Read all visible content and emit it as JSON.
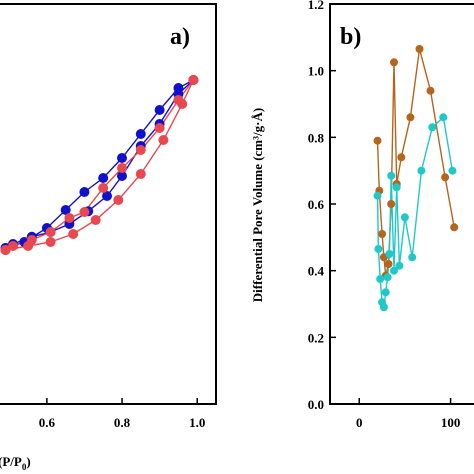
{
  "chart_data": [
    {
      "panel": "a)",
      "type": "line",
      "xlabel_visible_fragment": "(P/P",
      "xlabel_subscript": "0",
      "xlabel_close": ")",
      "xlim": [
        0.47,
        1.05
      ],
      "ylim": [
        0,
        1
      ],
      "x_ticks": [
        0.6,
        0.8,
        1.0
      ],
      "x_tick_labels": [
        "0.6",
        "0.8",
        "1.0"
      ],
      "grid": false,
      "series": [
        {
          "color": "#1111cc",
          "x": [
            0.49,
            0.54,
            0.6,
            0.65,
            0.7,
            0.75,
            0.8,
            0.85,
            0.9,
            0.95,
            0.99
          ],
          "y": [
            0.39,
            0.405,
            0.44,
            0.485,
            0.53,
            0.565,
            0.615,
            0.675,
            0.735,
            0.79,
            0.81
          ]
        },
        {
          "color": "#1111cc",
          "x": [
            0.99,
            0.95,
            0.9,
            0.85,
            0.8,
            0.76,
            0.71,
            0.66,
            0.61,
            0.56,
            0.51,
            0.49
          ],
          "y": [
            0.81,
            0.775,
            0.7,
            0.645,
            0.57,
            0.52,
            0.482,
            0.45,
            0.43,
            0.418,
            0.4,
            0.39
          ]
        },
        {
          "color": "#e84850",
          "x": [
            0.49,
            0.55,
            0.61,
            0.67,
            0.73,
            0.79,
            0.85,
            0.91,
            0.96,
            0.99
          ],
          "y": [
            0.385,
            0.395,
            0.405,
            0.425,
            0.46,
            0.51,
            0.575,
            0.66,
            0.75,
            0.81
          ]
        },
        {
          "color": "#e84850",
          "x": [
            0.99,
            0.95,
            0.9,
            0.85,
            0.8,
            0.75,
            0.7,
            0.66,
            0.61,
            0.56,
            0.51,
            0.49
          ],
          "y": [
            0.81,
            0.76,
            0.69,
            0.635,
            0.59,
            0.54,
            0.48,
            0.465,
            0.43,
            0.41,
            0.395,
            0.385
          ]
        }
      ]
    },
    {
      "panel": "b)",
      "type": "line",
      "ylabel": "Differential Pore Volume (cm³/g·Å)",
      "xlim": [
        -32,
        130
      ],
      "ylim": [
        0,
        1.2
      ],
      "x_ticks": [
        0,
        100
      ],
      "x_tick_labels": [
        "0",
        "100"
      ],
      "y_ticks": [
        0,
        0.2,
        0.4,
        0.6,
        0.8,
        1.0,
        1.2
      ],
      "y_tick_labels": [
        "0.0",
        "0.2",
        "0.4",
        "0.6",
        "0.8",
        "1.0",
        "1.2"
      ],
      "grid": false,
      "series": [
        {
          "color": "#b5651d",
          "x": [
            20,
            22,
            25,
            27,
            29,
            32,
            35,
            38,
            41,
            46,
            56,
            66,
            78,
            94,
            104
          ],
          "y": [
            0.79,
            0.64,
            0.51,
            0.44,
            0.385,
            0.42,
            0.6,
            1.025,
            0.66,
            0.74,
            0.86,
            1.065,
            0.94,
            0.68,
            0.53
          ]
        },
        {
          "color": "#20c8c8",
          "x": [
            20,
            21,
            23,
            25,
            27,
            29,
            31,
            33,
            35,
            38,
            41,
            44,
            50,
            58,
            68,
            80,
            92,
            102
          ],
          "y": [
            0.625,
            0.465,
            0.375,
            0.305,
            0.29,
            0.335,
            0.38,
            0.45,
            0.685,
            0.4,
            0.65,
            0.415,
            0.56,
            0.44,
            0.7,
            0.83,
            0.86,
            0.7
          ]
        }
      ]
    }
  ]
}
